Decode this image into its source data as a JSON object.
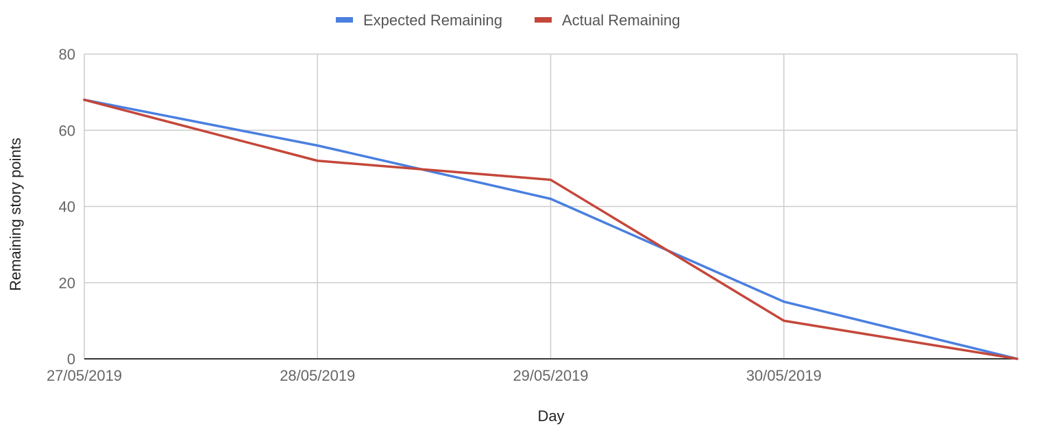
{
  "chart_data": {
    "type": "line",
    "title": "",
    "xlabel": "Day",
    "ylabel": "Remaining story points",
    "x_tick_labels": [
      "27/05/2019",
      "28/05/2019",
      "29/05/2019",
      "30/05/2019"
    ],
    "x_points": 5,
    "ylim": [
      0,
      80
    ],
    "yticks": [
      0,
      20,
      40,
      60,
      80
    ],
    "grid": true,
    "legend_position": "top",
    "series": [
      {
        "name": "Expected Remaining",
        "color": "#4a7fe0",
        "values": [
          68,
          56,
          42,
          15,
          0
        ]
      },
      {
        "name": "Actual Remaining",
        "color": "#c4473a",
        "values": [
          68,
          52,
          47,
          10,
          0
        ]
      }
    ]
  }
}
